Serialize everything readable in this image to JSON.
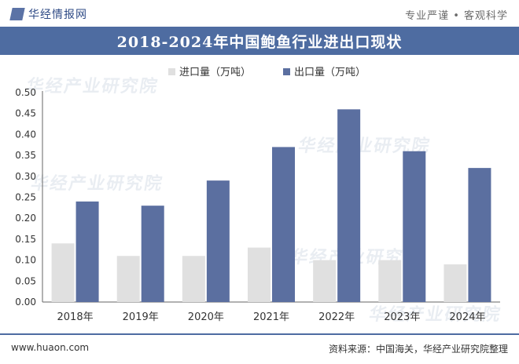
{
  "header": {
    "brand": "华经情报网",
    "tagline": "专业严谨 • 客观科学"
  },
  "chart_data": {
    "type": "bar",
    "title": "2018-2024年中国鲍鱼行业进出口现状",
    "categories": [
      "2018年",
      "2019年",
      "2020年",
      "2021年",
      "2022年",
      "2023年",
      "2024年"
    ],
    "series": [
      {
        "name": "进口量（万吨）",
        "color": "#e0e0e0",
        "values": [
          0.14,
          0.11,
          0.11,
          0.13,
          0.1,
          0.1,
          0.09
        ]
      },
      {
        "name": "出口量（万吨）",
        "color": "#5b6fa0",
        "values": [
          0.24,
          0.23,
          0.29,
          0.37,
          0.46,
          0.36,
          0.32
        ]
      }
    ],
    "ylim": [
      0,
      0.5
    ],
    "yticks": [
      "0.00",
      "0.05",
      "0.10",
      "0.15",
      "0.20",
      "0.25",
      "0.30",
      "0.35",
      "0.40",
      "0.45",
      "0.50"
    ],
    "legend_position": "top-left",
    "grid": false
  },
  "watermark": "华经产业研究院",
  "footer": {
    "website": "www.huaon.com",
    "source": "资料来源：中国海关，华经产业研究院整理"
  }
}
